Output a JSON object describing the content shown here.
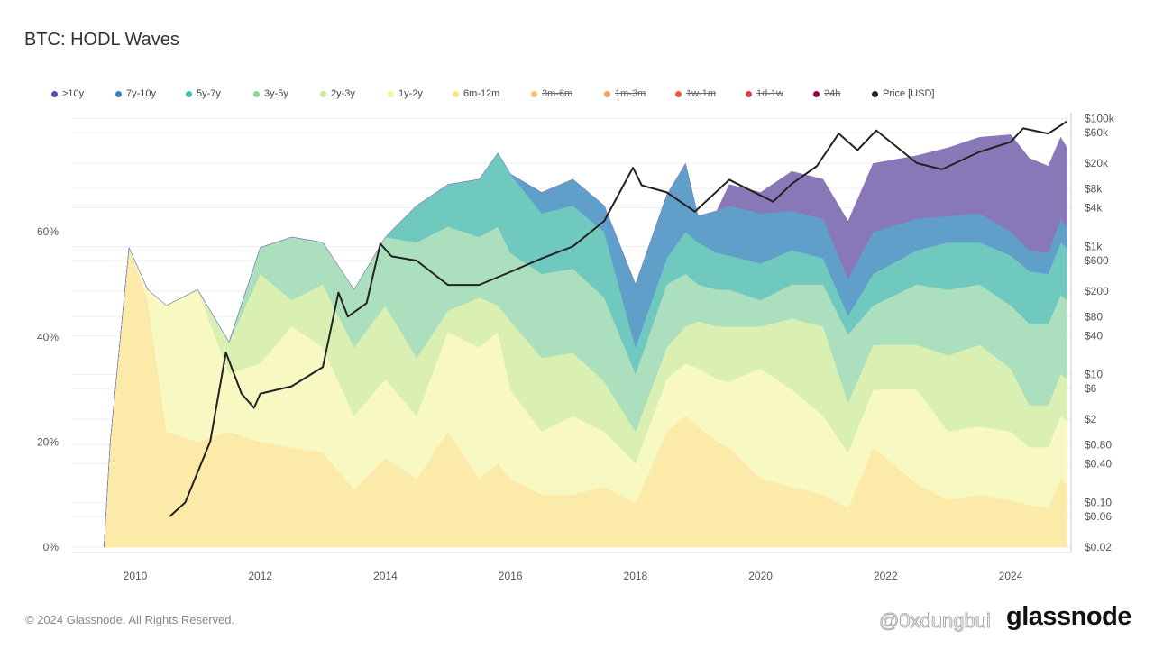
{
  "title": "BTC: HODL Waves",
  "footer": "© 2024 Glassnode. All Rights Reserved.",
  "logo": "glassnode",
  "watermark": "@0xdungbui",
  "legend": [
    {
      "label": ">10y",
      "color": "#5b4bb0",
      "enabled": true
    },
    {
      "label": "7y-10y",
      "color": "#3b82c4",
      "enabled": true
    },
    {
      "label": "5y-7y",
      "color": "#3bbfad",
      "enabled": true
    },
    {
      "label": "3y-5y",
      "color": "#8ed4a0",
      "enabled": true
    },
    {
      "label": "2y-3y",
      "color": "#c5ea98",
      "enabled": true
    },
    {
      "label": "1y-2y",
      "color": "#f3f39a",
      "enabled": true
    },
    {
      "label": "6m-12m",
      "color": "#fde48b",
      "enabled": true
    },
    {
      "label": "3m-6m",
      "color": "#f6c36b",
      "enabled": false
    },
    {
      "label": "1m-3m",
      "color": "#f5a05a",
      "enabled": false
    },
    {
      "label": "1w-1m",
      "color": "#ea5a3a",
      "enabled": false
    },
    {
      "label": "1d-1w",
      "color": "#d53e4f",
      "enabled": false
    },
    {
      "label": "24h",
      "color": "#9e0142",
      "enabled": false
    },
    {
      "label": "Price [USD]",
      "color": "#222222",
      "enabled": true
    }
  ],
  "chart_data": {
    "type": "area",
    "stacked": true,
    "title": "BTC: HODL Waves",
    "x_ticks": [
      "2010",
      "2012",
      "2014",
      "2016",
      "2018",
      "2020",
      "2022",
      "2024"
    ],
    "xlim": [
      2009.0,
      2024.95
    ],
    "y_left": {
      "ticks": [
        "0%",
        "20%",
        "40%",
        "60%"
      ],
      "tick_values": [
        0,
        20,
        40,
        60
      ],
      "unit": "%"
    },
    "y_right": {
      "scale": "log",
      "range": [
        0.02,
        100000
      ],
      "ticks": [
        {
          "label": "$100k",
          "value": 100000
        },
        {
          "label": "$60k",
          "value": 60000
        },
        {
          "label": "$20k",
          "value": 20000
        },
        {
          "label": "$8k",
          "value": 8000
        },
        {
          "label": "$4k",
          "value": 4000
        },
        {
          "label": "$1k",
          "value": 1000
        },
        {
          "label": "$600",
          "value": 600
        },
        {
          "label": "$200",
          "value": 200
        },
        {
          "label": "$80",
          "value": 80
        },
        {
          "label": "$40",
          "value": 40
        },
        {
          "label": "$10",
          "value": 10
        },
        {
          "label": "$6",
          "value": 6
        },
        {
          "label": "$2",
          "value": 2
        },
        {
          "label": "$0.80",
          "value": 0.8
        },
        {
          "label": "$0.40",
          "value": 0.4
        },
        {
          "label": "$0.10",
          "value": 0.1
        },
        {
          "label": "$0.06",
          "value": 0.06
        },
        {
          "label": "$0.02",
          "value": 0.02
        }
      ]
    },
    "grid": true,
    "legend_position": "top",
    "x": [
      2009.5,
      2009.6,
      2009.9,
      2010.2,
      2010.5,
      2011.0,
      2011.5,
      2012.0,
      2012.5,
      2013.0,
      2013.5,
      2014.0,
      2014.5,
      2015.0,
      2015.5,
      2015.8,
      2016.0,
      2016.5,
      2017.0,
      2017.5,
      2018.0,
      2018.5,
      2018.8,
      2019.0,
      2019.3,
      2019.5,
      2020.0,
      2020.5,
      2021.0,
      2021.4,
      2021.8,
      2022.5,
      2023.0,
      2023.5,
      2024.0,
      2024.3,
      2024.6,
      2024.8,
      2024.9
    ],
    "series": [
      {
        "name": "6m-12m",
        "color": "#fbeaa8",
        "values": [
          0,
          20,
          57,
          47,
          22,
          20,
          22,
          20,
          19,
          18,
          11,
          17,
          13,
          22,
          13,
          16,
          13,
          10,
          10,
          11.5,
          8.5,
          22,
          25,
          23,
          20,
          19,
          13,
          11.5,
          10,
          7.5,
          19,
          12,
          9,
          10,
          9,
          8,
          7.5,
          13,
          12
        ]
      },
      {
        "name": "1y-2y",
        "color": "#f7f8c2",
        "values": [
          0,
          0,
          0,
          2,
          24,
          29,
          11,
          15,
          23,
          20,
          14,
          15,
          12,
          19,
          25,
          25,
          17,
          12,
          15,
          10.5,
          7.5,
          10,
          10,
          11,
          12,
          12.5,
          21,
          18.5,
          15,
          10.5,
          11,
          18,
          13,
          13,
          13,
          11,
          11.5,
          12,
          12
        ]
      },
      {
        "name": "2y-3y",
        "color": "#d9f0b2",
        "values": [
          0,
          0,
          0,
          0,
          0,
          0,
          6,
          17,
          5,
          12,
          13,
          14,
          11,
          4,
          9.5,
          5,
          13,
          14,
          12,
          9.5,
          6,
          6,
          7,
          9,
          10,
          10.5,
          8,
          13.5,
          17,
          9.5,
          8.5,
          8.5,
          14.5,
          15.5,
          12,
          8,
          8,
          8,
          8
        ]
      },
      {
        "name": "3y-5y",
        "color": "#acdfbd",
        "values": [
          0,
          0,
          0,
          0,
          0,
          0,
          0,
          5,
          12,
          8,
          11,
          13,
          22,
          16,
          11.5,
          15,
          13,
          16,
          16,
          16,
          11,
          12,
          10,
          7,
          7,
          7,
          5,
          6.5,
          8,
          13,
          7.5,
          11.5,
          12.5,
          11.5,
          12,
          15.5,
          15.5,
          15,
          15
        ]
      },
      {
        "name": "5y-7y",
        "color": "#6fc9bf",
        "values": [
          0,
          0,
          0,
          0,
          0,
          0,
          0,
          0,
          0,
          0,
          0,
          0,
          7,
          8,
          11,
          14,
          15,
          11.5,
          12,
          12.5,
          5,
          5,
          8,
          8,
          7,
          6.5,
          7,
          6.5,
          5,
          3.5,
          6,
          6.5,
          9,
          8,
          9.5,
          10,
          9.5,
          10,
          10
        ]
      },
      {
        "name": "7y-10y",
        "color": "#619fcb",
        "values": [
          0,
          0,
          0,
          0,
          0,
          0,
          0,
          0,
          0,
          0,
          0,
          0,
          0,
          0,
          0,
          0,
          0,
          4,
          5,
          5,
          12,
          12,
          13,
          5,
          8,
          9.5,
          9.5,
          7.5,
          7.5,
          7,
          8,
          6,
          5,
          5.5,
          4.5,
          4,
          4,
          4.5,
          4
        ]
      },
      {
        "name": ">10y",
        "color": "#8878b8",
        "values": [
          0,
          0,
          0,
          0,
          0,
          0,
          0,
          0,
          0,
          0,
          0,
          0,
          0,
          0,
          0,
          0,
          0,
          0,
          0,
          0,
          0,
          0,
          0,
          0,
          0,
          4,
          4,
          7.5,
          7.5,
          11,
          13,
          12,
          13,
          14.5,
          18.5,
          17.5,
          16.5,
          15.5,
          15
        ]
      }
    ],
    "price": {
      "name": "Price [USD]",
      "color": "#222222",
      "x": [
        2010.55,
        2010.8,
        2011.0,
        2011.2,
        2011.45,
        2011.7,
        2011.9,
        2012.0,
        2012.5,
        2013.0,
        2013.25,
        2013.4,
        2013.7,
        2013.92,
        2014.1,
        2014.5,
        2015.0,
        2015.5,
        2016.0,
        2016.5,
        2017.0,
        2017.5,
        2017.96,
        2018.1,
        2018.5,
        2018.95,
        2019.5,
        2020.2,
        2020.5,
        2020.9,
        2021.25,
        2021.55,
        2021.85,
        2022.5,
        2022.9,
        2023.5,
        2024.0,
        2024.2,
        2024.6,
        2024.9
      ],
      "values": [
        0.06,
        0.1,
        0.3,
        0.9,
        22,
        5,
        3,
        5,
        6.5,
        13,
        190,
        80,
        130,
        1100,
        700,
        600,
        250,
        250,
        400,
        650,
        1000,
        2500,
        17000,
        9000,
        7000,
        3500,
        11000,
        5000,
        9500,
        18000,
        58000,
        32000,
        65000,
        20000,
        16000,
        30000,
        43000,
        70000,
        58000,
        90000
      ]
    }
  }
}
